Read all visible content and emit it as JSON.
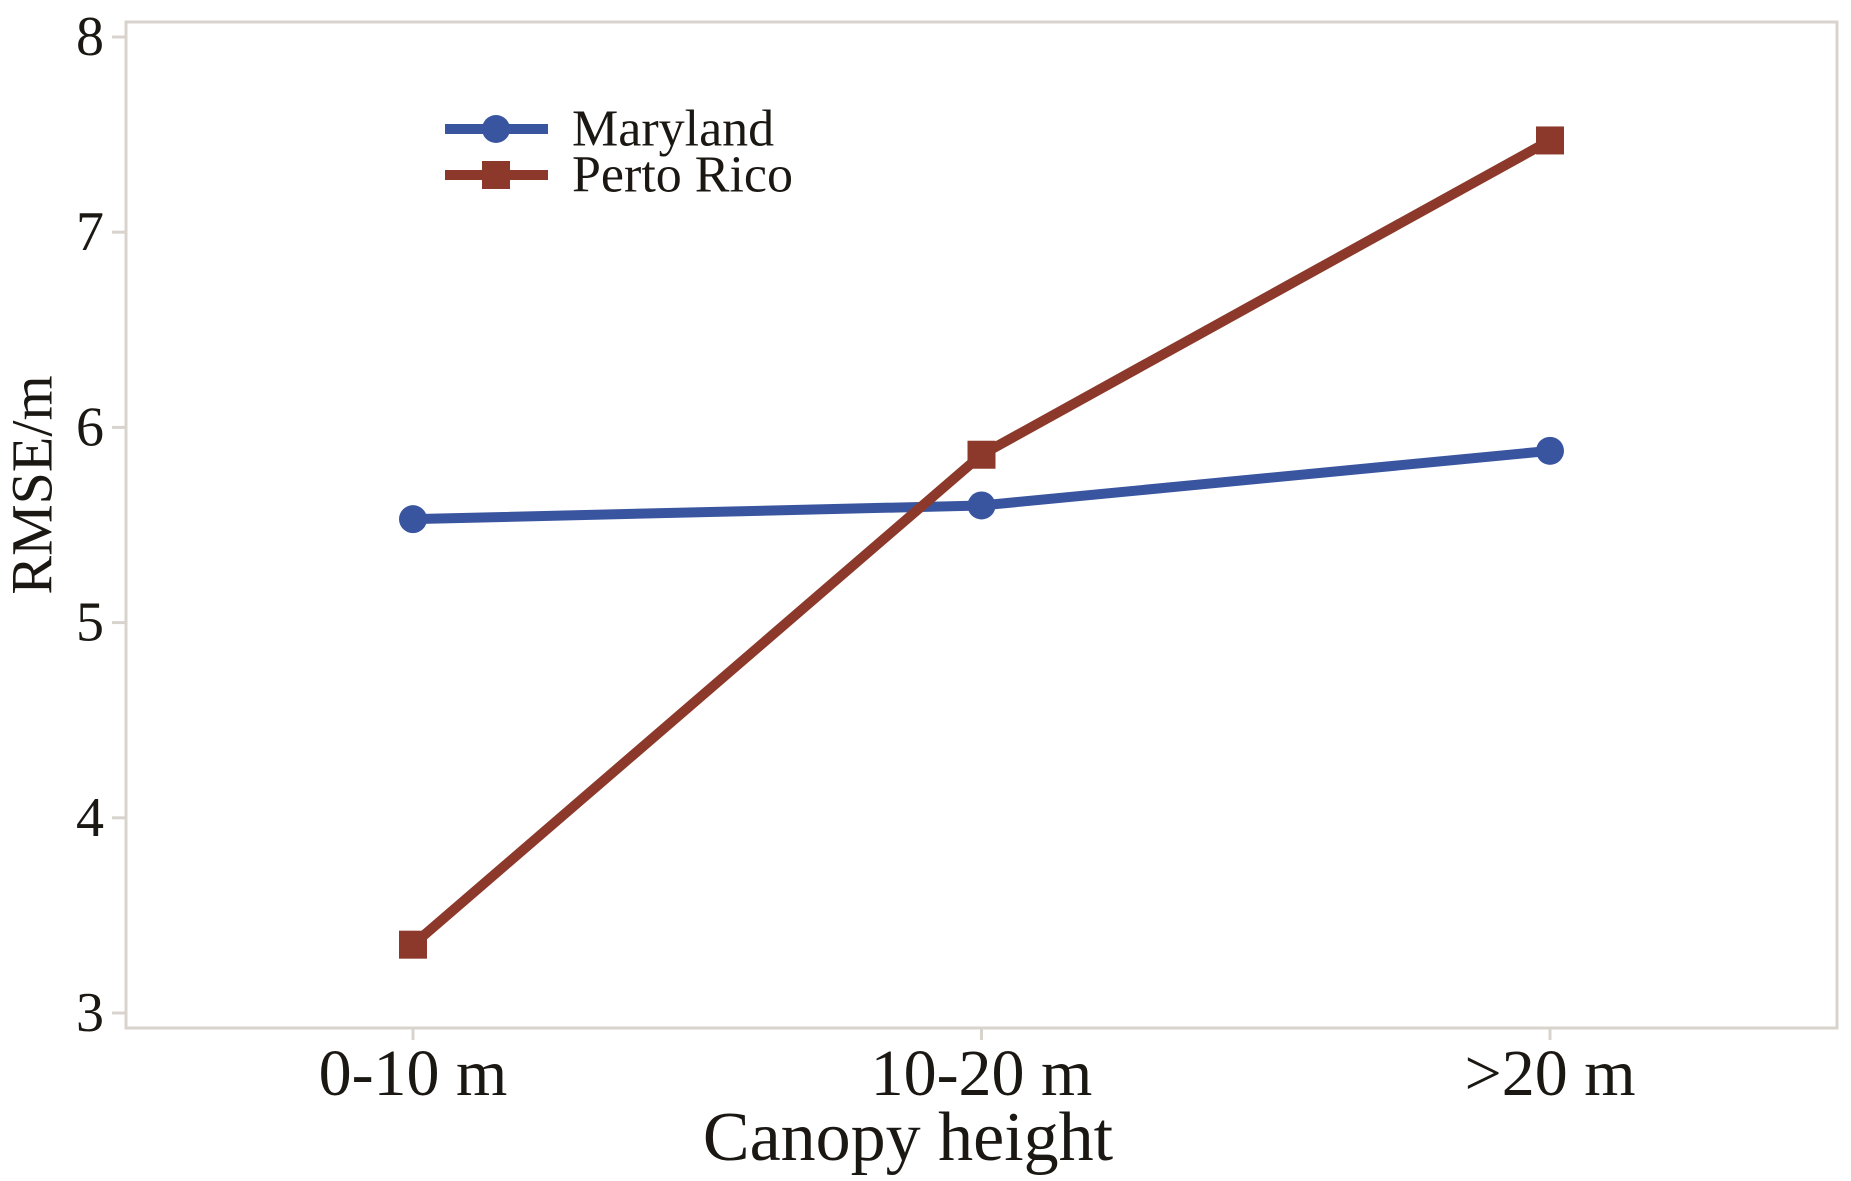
{
  "figure": {
    "background": "#ffffff",
    "text_color": "#1b1713",
    "axis_line_color": "#d9d3cd"
  },
  "chart_data": {
    "type": "line",
    "title": "",
    "categories": [
      "0-10 m",
      "10-20 m",
      ">20 m"
    ],
    "series": [
      {
        "name": "Maryland",
        "values": [
          5.53,
          5.6,
          5.88
        ],
        "color": "#3A55A0",
        "marker": "circle"
      },
      {
        "name": "Perto Rico",
        "values": [
          3.35,
          5.86,
          7.47
        ],
        "color": "#8C392B",
        "marker": "square"
      }
    ],
    "xlabel": "Canopy height",
    "ylabel": "RMSE/m",
    "ylim": [
      3,
      8
    ],
    "yticks": [
      3,
      4,
      5,
      6,
      7,
      8
    ],
    "grid": false,
    "legend_position": "top-left-inside"
  }
}
